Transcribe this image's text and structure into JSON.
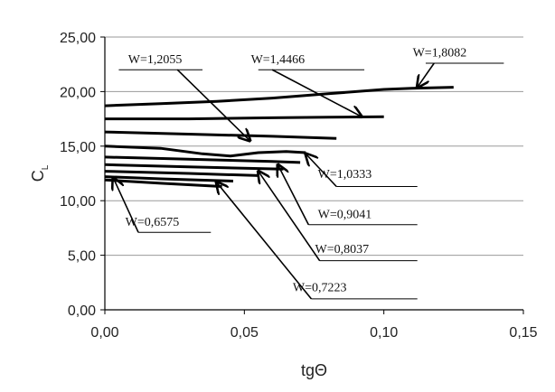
{
  "chart_data": {
    "type": "line",
    "xlabel": "tgΘ",
    "ylabel": "C",
    "ylabel_sub": "L",
    "xlim": [
      0,
      0.15
    ],
    "ylim": [
      0,
      25
    ],
    "x_ticks": [
      "0,00",
      "0,05",
      "0,10",
      "0,15"
    ],
    "y_ticks": [
      "0,00",
      "5,00",
      "10,00",
      "15,00",
      "20,00",
      "25,00"
    ],
    "grid": "horizontal",
    "series": [
      {
        "x": [
          0,
          0.02,
          0.04,
          0.06,
          0.08,
          0.1,
          0.11,
          0.125
        ],
        "y": [
          18.7,
          18.9,
          19.1,
          19.4,
          19.8,
          20.2,
          20.3,
          20.4
        ]
      },
      {
        "x": [
          0,
          0.03,
          0.06,
          0.08,
          0.1
        ],
        "y": [
          17.5,
          17.5,
          17.6,
          17.65,
          17.7
        ]
      },
      {
        "x": [
          0,
          0.03,
          0.06,
          0.083
        ],
        "y": [
          16.3,
          16.1,
          15.9,
          15.7
        ]
      },
      {
        "x": [
          0,
          0.02,
          0.035,
          0.045,
          0.055,
          0.065,
          0.072
        ],
        "y": [
          15.0,
          14.8,
          14.3,
          14.1,
          14.4,
          14.5,
          14.4
        ]
      },
      {
        "x": [
          0,
          0.03,
          0.06,
          0.07
        ],
        "y": [
          14.0,
          13.8,
          13.6,
          13.5
        ]
      },
      {
        "x": [
          0,
          0.03,
          0.064
        ],
        "y": [
          13.3,
          13.1,
          12.9
        ]
      },
      {
        "x": [
          0,
          0.03,
          0.055
        ],
        "y": [
          12.7,
          12.5,
          12.3
        ]
      },
      {
        "x": [
          0,
          0.02,
          0.046
        ],
        "y": [
          12.2,
          12.0,
          11.8
        ]
      },
      {
        "x": [
          0,
          0.02,
          0.042
        ],
        "y": [
          11.9,
          11.6,
          11.3
        ]
      }
    ],
    "annotations": [
      {
        "label": "W=1,2055",
        "text_at": [
          0.018,
          22.6
        ],
        "line_y": 22.0,
        "line_x": [
          0.005,
          0.035
        ],
        "arrow_from": [
          0.026,
          22.0
        ],
        "arrow_to": [
          0.052,
          15.5
        ]
      },
      {
        "label": "W=1,4466",
        "text_at": [
          0.062,
          22.6
        ],
        "line_y": 22.0,
        "line_x": [
          0.055,
          0.093
        ],
        "arrow_from": [
          0.06,
          22.0
        ],
        "arrow_to": [
          0.092,
          17.7
        ]
      },
      {
        "label": "W=1,8082",
        "text_at": [
          0.12,
          23.2
        ],
        "line_y": 22.6,
        "line_x": [
          0.115,
          0.143
        ],
        "arrow_from": [
          0.118,
          22.6
        ],
        "arrow_to": [
          0.112,
          20.4
        ]
      },
      {
        "label": "W=1,0333",
        "text_at": [
          0.086,
          12.1
        ],
        "line_y": 11.3,
        "line_x": [
          0.083,
          0.112
        ],
        "arrow_from": [
          0.083,
          11.3
        ],
        "arrow_to": [
          0.072,
          14.3
        ]
      },
      {
        "label": "W=0,9041",
        "text_at": [
          0.086,
          8.4
        ],
        "line_y": 7.8,
        "line_x": [
          0.073,
          0.112
        ],
        "arrow_from": [
          0.073,
          7.8
        ],
        "arrow_to": [
          0.062,
          13.3
        ]
      },
      {
        "label": "W=0,8037",
        "text_at": [
          0.085,
          5.2
        ],
        "line_y": 4.5,
        "line_x": [
          0.077,
          0.112
        ],
        "arrow_from": [
          0.077,
          4.5
        ],
        "arrow_to": [
          0.055,
          12.7
        ]
      },
      {
        "label": "W=0,7223",
        "text_at": [
          0.077,
          1.7
        ],
        "line_y": 1.0,
        "line_x": [
          0.074,
          0.112
        ],
        "arrow_from": [
          0.074,
          1.0
        ],
        "arrow_to": [
          0.04,
          11.7
        ]
      },
      {
        "label": "W=0,6575",
        "text_at": [
          0.017,
          7.7
        ],
        "line_y": 7.1,
        "line_x": [
          0.012,
          0.038
        ],
        "arrow_from": [
          0.012,
          7.1
        ],
        "arrow_to": [
          0.003,
          12.1
        ]
      }
    ]
  }
}
